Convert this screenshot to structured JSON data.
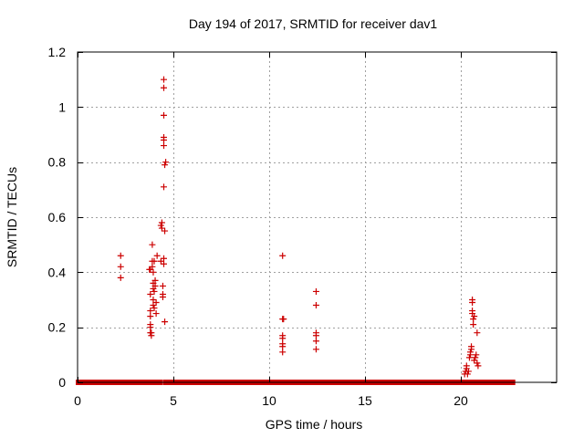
{
  "chart_data": {
    "type": "scatter",
    "title": "Day 194 of 2017, SRMTID for receiver dav1",
    "xlabel": "GPS time / hours",
    "ylabel": "SRMTID / TECUs",
    "xlim": [
      0,
      25
    ],
    "ylim": [
      0,
      1.2
    ],
    "grid": true,
    "marker": "+",
    "color": "#cc0000",
    "xticks": [
      0,
      5,
      10,
      15,
      20
    ],
    "xtick_labels": [
      "0",
      "5",
      "10",
      "15",
      "20"
    ],
    "yticks": [
      0,
      0.2,
      0.4,
      0.6,
      0.8,
      1.0,
      1.2
    ],
    "ytick_labels": [
      "0",
      "0.2",
      "0.4",
      "0.6",
      "0.8",
      "1",
      "1.2"
    ],
    "baseline_segments": [
      {
        "x_start": 0.05,
        "x_end": 3.8,
        "y": 0
      },
      {
        "x_start": 4.0,
        "x_end": 4.3,
        "y": 0
      },
      {
        "x_start": 4.6,
        "x_end": 22.7,
        "y": 0
      }
    ],
    "series": [
      {
        "name": "SRMTID",
        "points": [
          [
            2.25,
            0.46
          ],
          [
            2.25,
            0.42
          ],
          [
            2.25,
            0.38
          ],
          [
            3.75,
            0.41
          ],
          [
            3.8,
            0.41
          ],
          [
            3.8,
            0.32
          ],
          [
            3.8,
            0.26
          ],
          [
            3.8,
            0.24
          ],
          [
            3.8,
            0.21
          ],
          [
            3.8,
            0.2
          ],
          [
            3.8,
            0.18
          ],
          [
            3.85,
            0.17
          ],
          [
            3.85,
            0.18
          ],
          [
            3.9,
            0.42
          ],
          [
            3.9,
            0.5
          ],
          [
            3.9,
            0.44
          ],
          [
            3.95,
            0.4
          ],
          [
            3.95,
            0.36
          ],
          [
            3.95,
            0.34
          ],
          [
            3.95,
            0.3
          ],
          [
            3.95,
            0.28
          ],
          [
            4.0,
            0.44
          ],
          [
            4.0,
            0.33
          ],
          [
            4.0,
            0.27
          ],
          [
            4.05,
            0.37
          ],
          [
            4.05,
            0.35
          ],
          [
            4.1,
            0.29
          ],
          [
            4.1,
            0.25
          ],
          [
            4.15,
            0.46
          ],
          [
            4.35,
            0.44
          ],
          [
            4.35,
            0.57
          ],
          [
            4.4,
            0.58
          ],
          [
            4.4,
            0.56
          ],
          [
            4.45,
            0.32
          ],
          [
            4.45,
            0.31
          ],
          [
            4.45,
            0.35
          ],
          [
            4.5,
            1.1
          ],
          [
            4.5,
            1.07
          ],
          [
            4.5,
            0.97
          ],
          [
            4.5,
            0.89
          ],
          [
            4.5,
            0.88
          ],
          [
            4.5,
            0.86
          ],
          [
            4.5,
            0.71
          ],
          [
            4.5,
            0.45
          ],
          [
            4.5,
            0.43
          ],
          [
            4.55,
            0.79
          ],
          [
            4.55,
            0.55
          ],
          [
            4.55,
            0.22
          ],
          [
            4.6,
            0.8
          ],
          [
            10.7,
            0.46
          ],
          [
            10.7,
            0.23
          ],
          [
            10.7,
            0.17
          ],
          [
            10.7,
            0.16
          ],
          [
            10.7,
            0.14
          ],
          [
            10.7,
            0.13
          ],
          [
            10.7,
            0.11
          ],
          [
            10.75,
            0.23
          ],
          [
            12.45,
            0.33
          ],
          [
            12.45,
            0.28
          ],
          [
            12.45,
            0.18
          ],
          [
            12.45,
            0.17
          ],
          [
            12.45,
            0.15
          ],
          [
            12.45,
            0.12
          ],
          [
            20.2,
            0.03
          ],
          [
            20.25,
            0.04
          ],
          [
            20.3,
            0.05
          ],
          [
            20.3,
            0.06
          ],
          [
            20.35,
            0.03
          ],
          [
            20.4,
            0.04
          ],
          [
            20.45,
            0.09
          ],
          [
            20.5,
            0.1
          ],
          [
            20.5,
            0.11
          ],
          [
            20.55,
            0.12
          ],
          [
            20.55,
            0.13
          ],
          [
            20.6,
            0.3
          ],
          [
            20.6,
            0.29
          ],
          [
            20.6,
            0.26
          ],
          [
            20.6,
            0.25
          ],
          [
            20.65,
            0.23
          ],
          [
            20.65,
            0.21
          ],
          [
            20.7,
            0.24
          ],
          [
            20.7,
            0.08
          ],
          [
            20.75,
            0.09
          ],
          [
            20.8,
            0.1
          ],
          [
            20.85,
            0.18
          ],
          [
            20.85,
            0.07
          ],
          [
            20.9,
            0.06
          ]
        ]
      }
    ]
  }
}
